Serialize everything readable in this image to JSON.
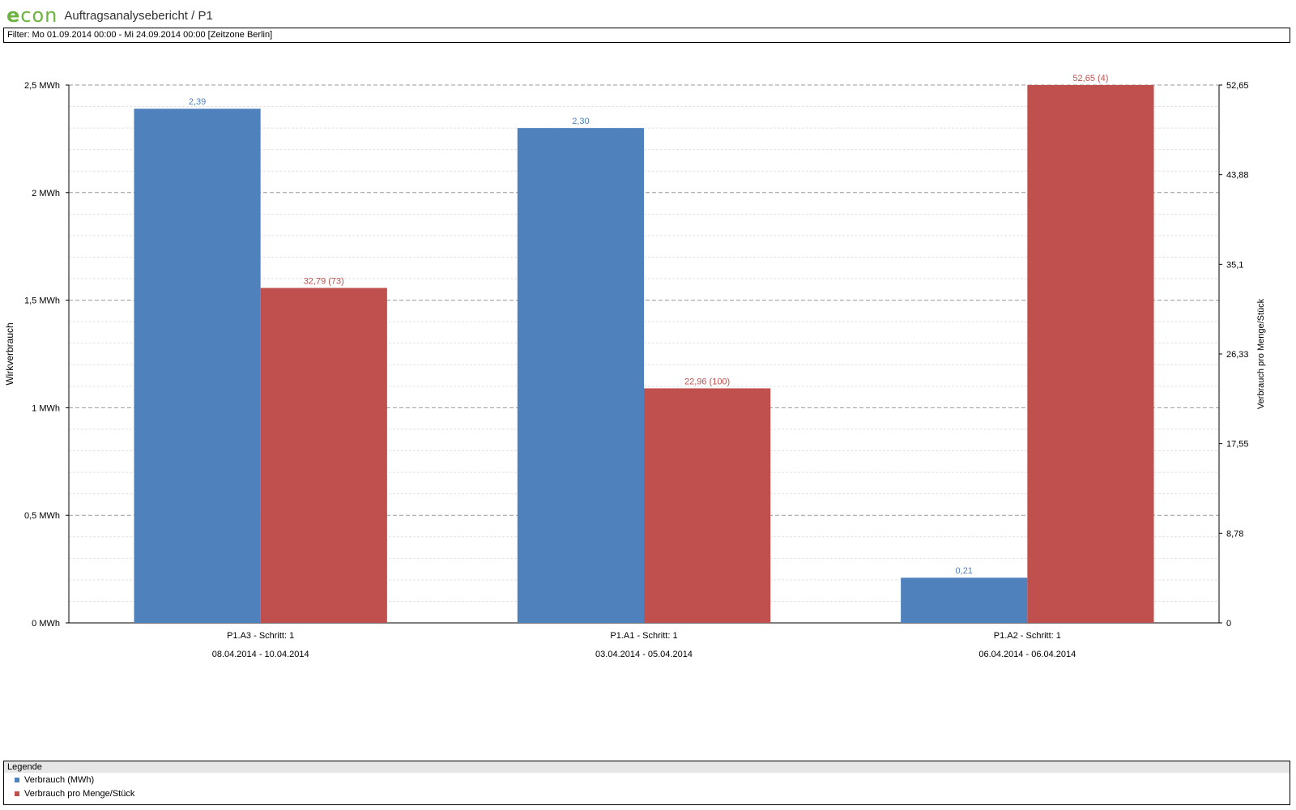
{
  "header": {
    "logo_e": "e",
    "logo_con": "con",
    "title": "Auftragsanalysebericht / P1"
  },
  "filter_text": "Filter: Mo 01.09.2014 00:00 - Mi 24.09.2014 00:00 [Zeitzone Berlin]",
  "colors": {
    "series1": "#4f81bd",
    "series2": "#c0504d"
  },
  "chart_data": {
    "type": "bar",
    "categories": [
      "P1.A3 - Schritt: 1",
      "P1.A1 - Schritt: 1",
      "P1.A2 - Schritt: 1"
    ],
    "category_dates": [
      "08.04.2014 - 10.04.2014",
      "03.04.2014 - 05.04.2014",
      "06.04.2014 - 06.04.2014"
    ],
    "ylabel": "Wirkverbrauch",
    "y2label": "Verbrauch pro Menge/Stück",
    "ylim": [
      0,
      2.5
    ],
    "y2lim": [
      0,
      52.65
    ],
    "yticks": [
      "0 MWh",
      "0,5 MWh",
      "1 MWh",
      "1,5 MWh",
      "2 MWh",
      "2,5 MWh"
    ],
    "y2ticks": [
      "0",
      "8,78",
      "17,55",
      "26,33",
      "35,1",
      "43,88",
      "52,65"
    ],
    "series": [
      {
        "name": "Verbrauch (MWh)",
        "axis": "left",
        "values": [
          2.39,
          2.3,
          0.21
        ],
        "labels": [
          "2,39",
          "2,30",
          "0,21"
        ]
      },
      {
        "name": "Verbrauch pro Menge/Stück",
        "axis": "right",
        "values": [
          32.79,
          22.96,
          52.65
        ],
        "labels": [
          "32,79 (73)",
          "22,96 (100)",
          "52,65 (4)"
        ]
      }
    ],
    "grid": true,
    "legend_position": "bottom"
  },
  "legend": {
    "title": "Legende",
    "items": [
      "Verbrauch (MWh)",
      "Verbrauch pro Menge/Stück"
    ]
  }
}
